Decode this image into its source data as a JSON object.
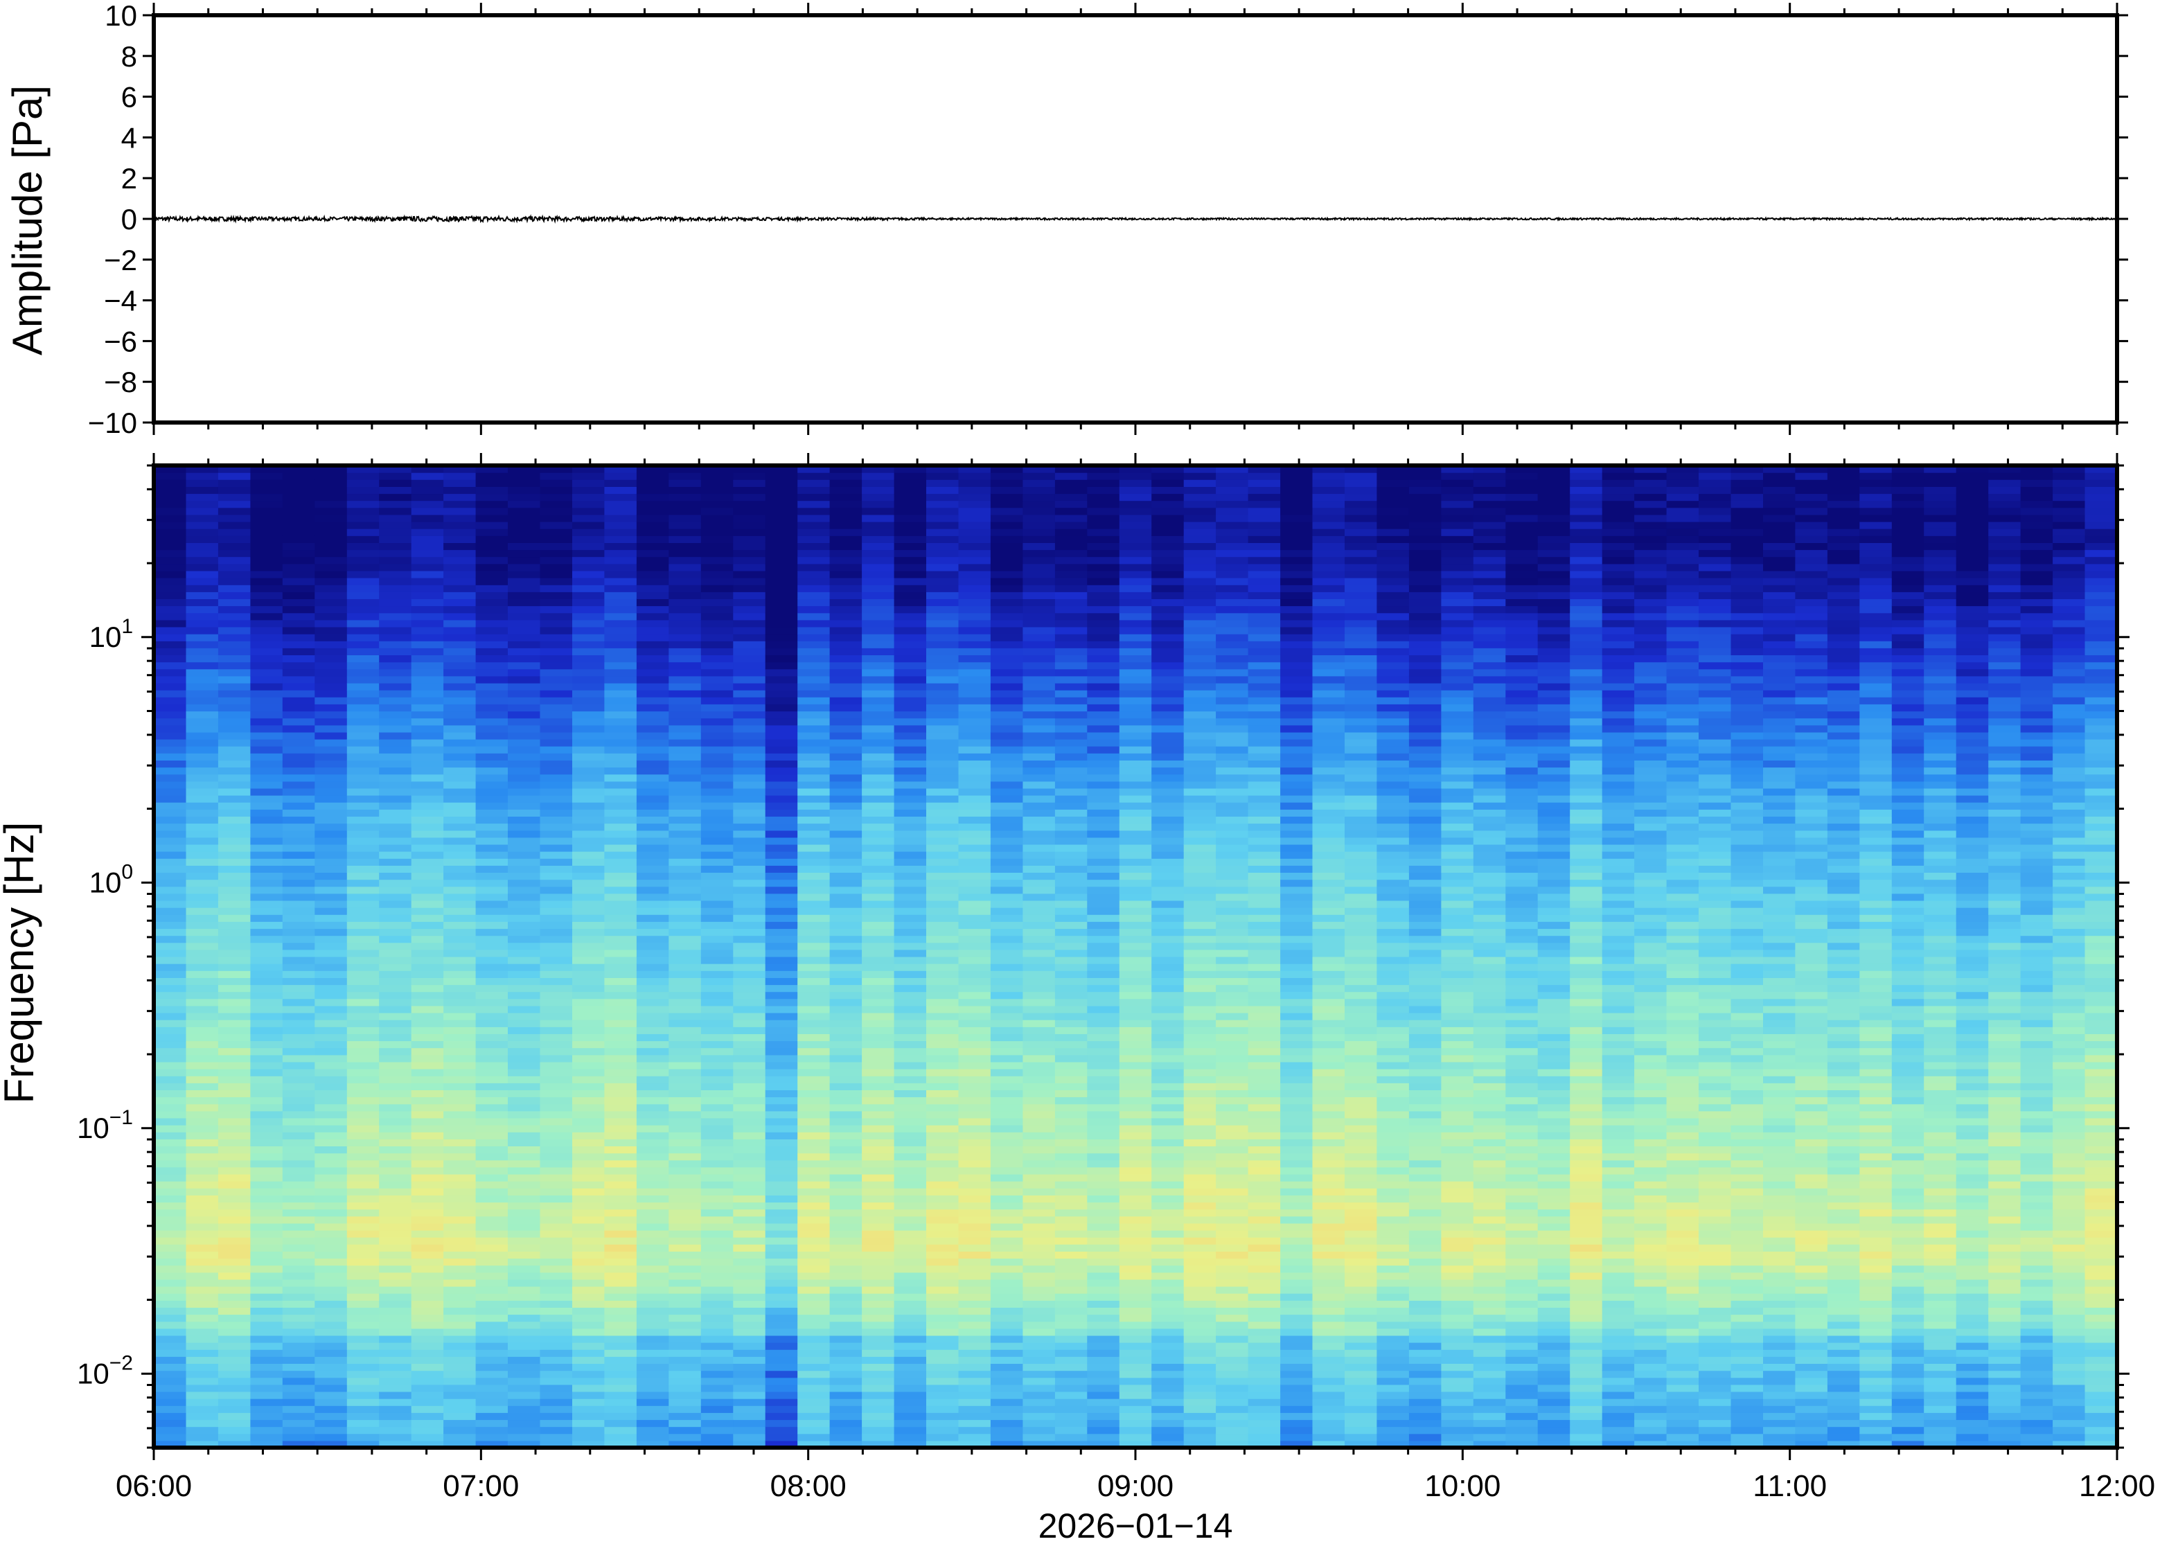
{
  "chart_data": [
    {
      "type": "line",
      "panel": "waveform",
      "ylabel": "Amplitude [Pa]",
      "ylim": [
        -10,
        10
      ],
      "yticks": [
        10,
        8,
        6,
        4,
        2,
        0,
        -2,
        -4,
        -6,
        -8,
        -10
      ],
      "ytick_labels": [
        "10",
        "8",
        "6",
        "4",
        "2",
        "0",
        "−2",
        "−4",
        "−6",
        "−8",
        "−10"
      ],
      "xlim": [
        "06:00",
        "12:00"
      ],
      "series": [
        {
          "color": "#000000",
          "x": [
            "06:00",
            "06:30",
            "07:00",
            "07:30",
            "08:00",
            "08:30",
            "09:00",
            "09:30",
            "10:00",
            "10:30",
            "11:00",
            "11:30",
            "12:00"
          ],
          "values": [
            0.05,
            0.04,
            0.06,
            0.04,
            0.03,
            0.02,
            0.02,
            0.02,
            0.02,
            0.02,
            0.02,
            0.02,
            0.02
          ]
        }
      ]
    },
    {
      "type": "heatmap",
      "panel": "spectrogram",
      "ylabel": "Frequency [Hz]",
      "xlabel": "2026−01−14",
      "yscale": "log",
      "ylim": [
        0.005,
        50
      ],
      "yticks": [
        {
          "base": "10",
          "exp": "−2",
          "value": 0.01
        },
        {
          "base": "10",
          "exp": "−1",
          "value": 0.1
        },
        {
          "base": "10",
          "exp": "0",
          "value": 1
        },
        {
          "base": "10",
          "exp": "1",
          "value": 10
        }
      ],
      "xticks": [
        "06:00",
        "07:00",
        "08:00",
        "09:00",
        "10:00",
        "11:00",
        "12:00"
      ],
      "colormap": [
        "#0a0a78",
        "#1a2ed0",
        "#2a8cf0",
        "#5fd0f0",
        "#9ef0c8",
        "#e8f08a",
        "#f8d070",
        "#f0a050"
      ],
      "description_of_pattern": {
        "time_columns": 61,
        "high_freq_band": "dark blue (low power) above ~10 Hz",
        "low_freq_band": "yellow-green (high power) between 0.02 and 0.3 Hz",
        "lowest_band": "light blue below 0.015 Hz"
      }
    }
  ]
}
